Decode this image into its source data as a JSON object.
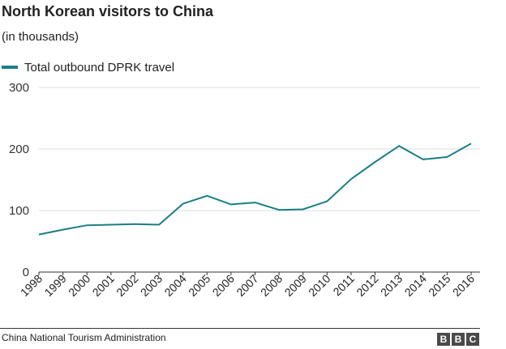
{
  "title": "North Korean visitors to China",
  "subtitle": "(in thousands)",
  "source": "China National Tourism Administration",
  "logo_letters": [
    "B",
    "B",
    "C"
  ],
  "chart_data": {
    "type": "line",
    "x": [
      "1998",
      "1999",
      "2000",
      "2001",
      "2002",
      "2003",
      "2004",
      "2005",
      "2006",
      "2007",
      "2008",
      "2009",
      "2010",
      "2011",
      "2012",
      "2013",
      "2014",
      "2015",
      "2016"
    ],
    "series": [
      {
        "name": "Total outbound DPRK travel",
        "color": "#1a7f84",
        "values": [
          61,
          69,
          76,
          77,
          78,
          77,
          111,
          124,
          110,
          113,
          101,
          102,
          115,
          151,
          179,
          205,
          183,
          187,
          209
        ]
      }
    ],
    "yticks": [
      0,
      100,
      200,
      300
    ],
    "ylim": [
      0,
      300
    ],
    "grid": true,
    "legend_position": "top-left"
  }
}
